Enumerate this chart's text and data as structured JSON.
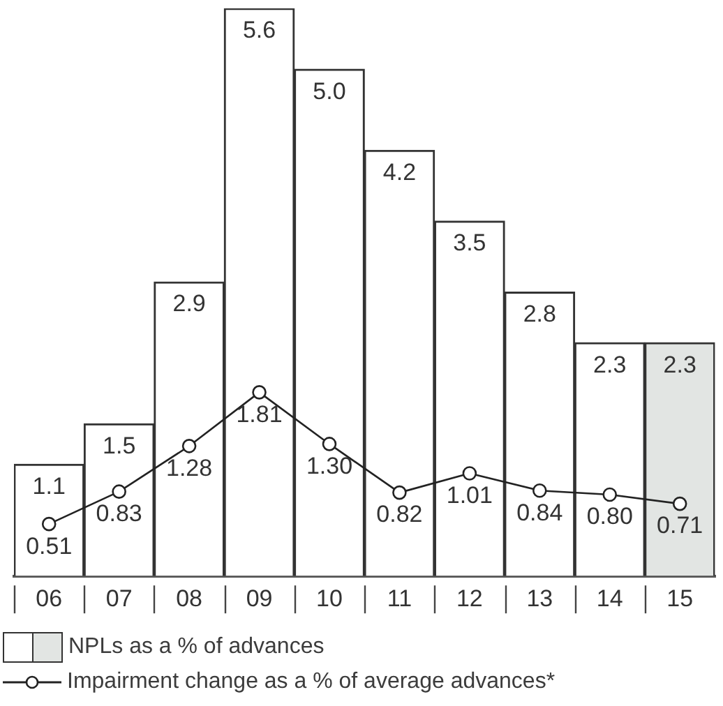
{
  "chart_data": {
    "type": "bar",
    "categories": [
      "06",
      "07",
      "08",
      "09",
      "10",
      "11",
      "12",
      "13",
      "14",
      "15"
    ],
    "series": [
      {
        "name": "NPLs as a % of advances",
        "colors": [
          "#ffffff",
          "#ffffff",
          "#ffffff",
          "#ffffff",
          "#ffffff",
          "#ffffff",
          "#ffffff",
          "#ffffff",
          "#ffffff",
          "#e2e5e3"
        ],
        "values": [
          1.1,
          1.5,
          2.9,
          5.6,
          5.0,
          4.2,
          3.5,
          2.8,
          2.3,
          2.3
        ],
        "value_labels": [
          "1.1",
          "1.5",
          "2.9",
          "5.6",
          "5.0",
          "4.2",
          "3.5",
          "2.8",
          "2.3",
          "2.3"
        ]
      },
      {
        "name": "Impairment change as a % of average advances*",
        "type": "line",
        "color": "#222222",
        "values": [
          0.51,
          0.83,
          1.28,
          1.81,
          1.3,
          0.82,
          1.01,
          0.84,
          0.8,
          0.71
        ],
        "value_labels": [
          "0.51",
          "0.83",
          "1.28",
          "1.81",
          "1.30",
          "0.82",
          "1.01",
          "0.84",
          "0.80",
          "0.71"
        ]
      }
    ],
    "legend": "bottom",
    "marker": "circle",
    "line_style": "solid"
  }
}
